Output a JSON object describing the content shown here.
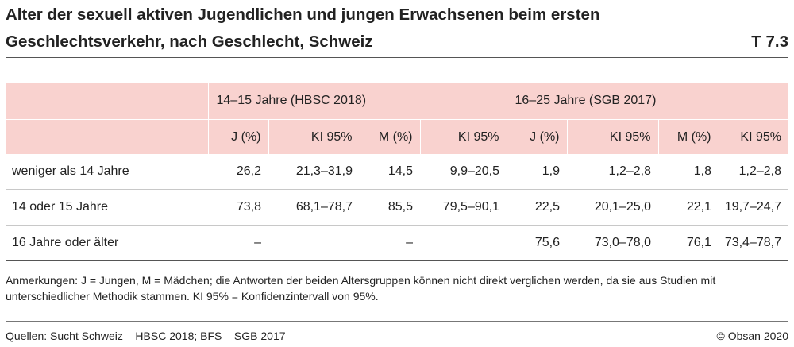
{
  "title": "Alter der sexuell aktiven Jugendlichen und jungen Erwachsenen beim ersten Geschlechtsverkehr, nach Geschlecht, Schweiz",
  "table_code": "T 7.3",
  "table": {
    "groups": [
      "14–15 Jahre (HBSC 2018)",
      "16–25 Jahre (SGB 2017)"
    ],
    "subheaders": [
      "J (%)",
      "KI 95%",
      "M (%)",
      "KI 95%",
      "J (%)",
      "KI 95%",
      "M (%)",
      "KI 95%"
    ],
    "rows": [
      {
        "label": "weniger als 14 Jahre",
        "cells": [
          "26,2",
          "21,3–31,9",
          "14,5",
          "9,9–20,5",
          "1,9",
          "1,2–2,8",
          "1,8",
          "1,2–2,8"
        ]
      },
      {
        "label": "14 oder 15 Jahre",
        "cells": [
          "73,8",
          "68,1–78,7",
          "85,5",
          "79,5–90,1",
          "22,5",
          "20,1–25,0",
          "22,1",
          "19,7–24,7"
        ]
      },
      {
        "label": "16 Jahre oder älter",
        "cells": [
          "–",
          "",
          "–",
          "",
          "75,6",
          "73,0–78,0",
          "76,1",
          "73,4–78,7"
        ]
      }
    ]
  },
  "notes": "Anmerkungen: J = Jungen, M = Mädchen; die Antworten der beiden Altersgruppen können nicht direkt verglichen werden, da sie aus Studien mit unterschiedlicher Methodik stammen. KI 95% = Konfidenzintervall von 95%.",
  "source": "Quellen: Sucht Schweiz – HBSC 2018; BFS – SGB 2017",
  "copyright": "© Obsan 2020"
}
